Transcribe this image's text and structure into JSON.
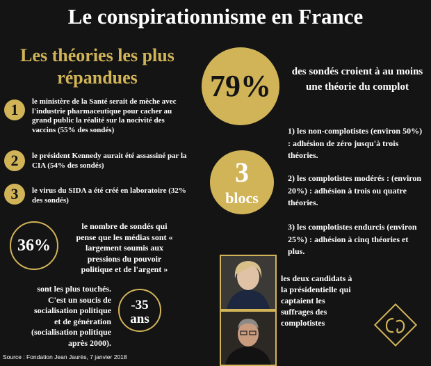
{
  "title": "Le conspirationnisme en France",
  "subtitle": "Les théories les plus répandues",
  "theories": [
    {
      "number": "1",
      "text": "le ministère de la Santé serait de mèche avec l'industrie pharmaceutique pour cacher au grand public la réalité sur la nocivité des vaccins  (55% des sondés)"
    },
    {
      "number": "2",
      "text": "le président Kennedy aurait été assassiné par la CIA (54% des sondés)"
    },
    {
      "number": "3",
      "text": "le virus du SIDA a été créé en laboratoire (32% des sondés)"
    }
  ],
  "media_stat": {
    "value": "36%",
    "text": "le nombre de sondés qui pense que les médias sont « largement soumis aux pressions du pouvoir politique et de l'argent »"
  },
  "age_stat": {
    "value_line1": "-35",
    "value_line2": "ans",
    "text": "sont les plus touchés. C'est  un soucis de socialisation politique et de génération (socialisation politique après 2000)."
  },
  "main_stat": {
    "value": "79%",
    "text": "des sondés croient à au moins une théorie du complot"
  },
  "blocs": {
    "number": "3",
    "label": "blocs",
    "items": [
      "1) les non-complotistes (environ 50%) : adhésion de zéro jusqu'à trois théories.",
      "2) les complotistes modérés : (environ 20%) : adhésion à trois  ou quatre  théories.",
      "3) les complotistes endurcis (environ 25%) : adhésion à cinq théories et plus."
    ]
  },
  "candidates_text": "les deux candidats à la présidentielle qui captaient les suffrages des complotistes",
  "source": "Source : Fondation Jean Jaurès, 7 janvier 2018",
  "colors": {
    "background": "#141414",
    "gold": "#d2b458",
    "text": "#ffffff"
  }
}
